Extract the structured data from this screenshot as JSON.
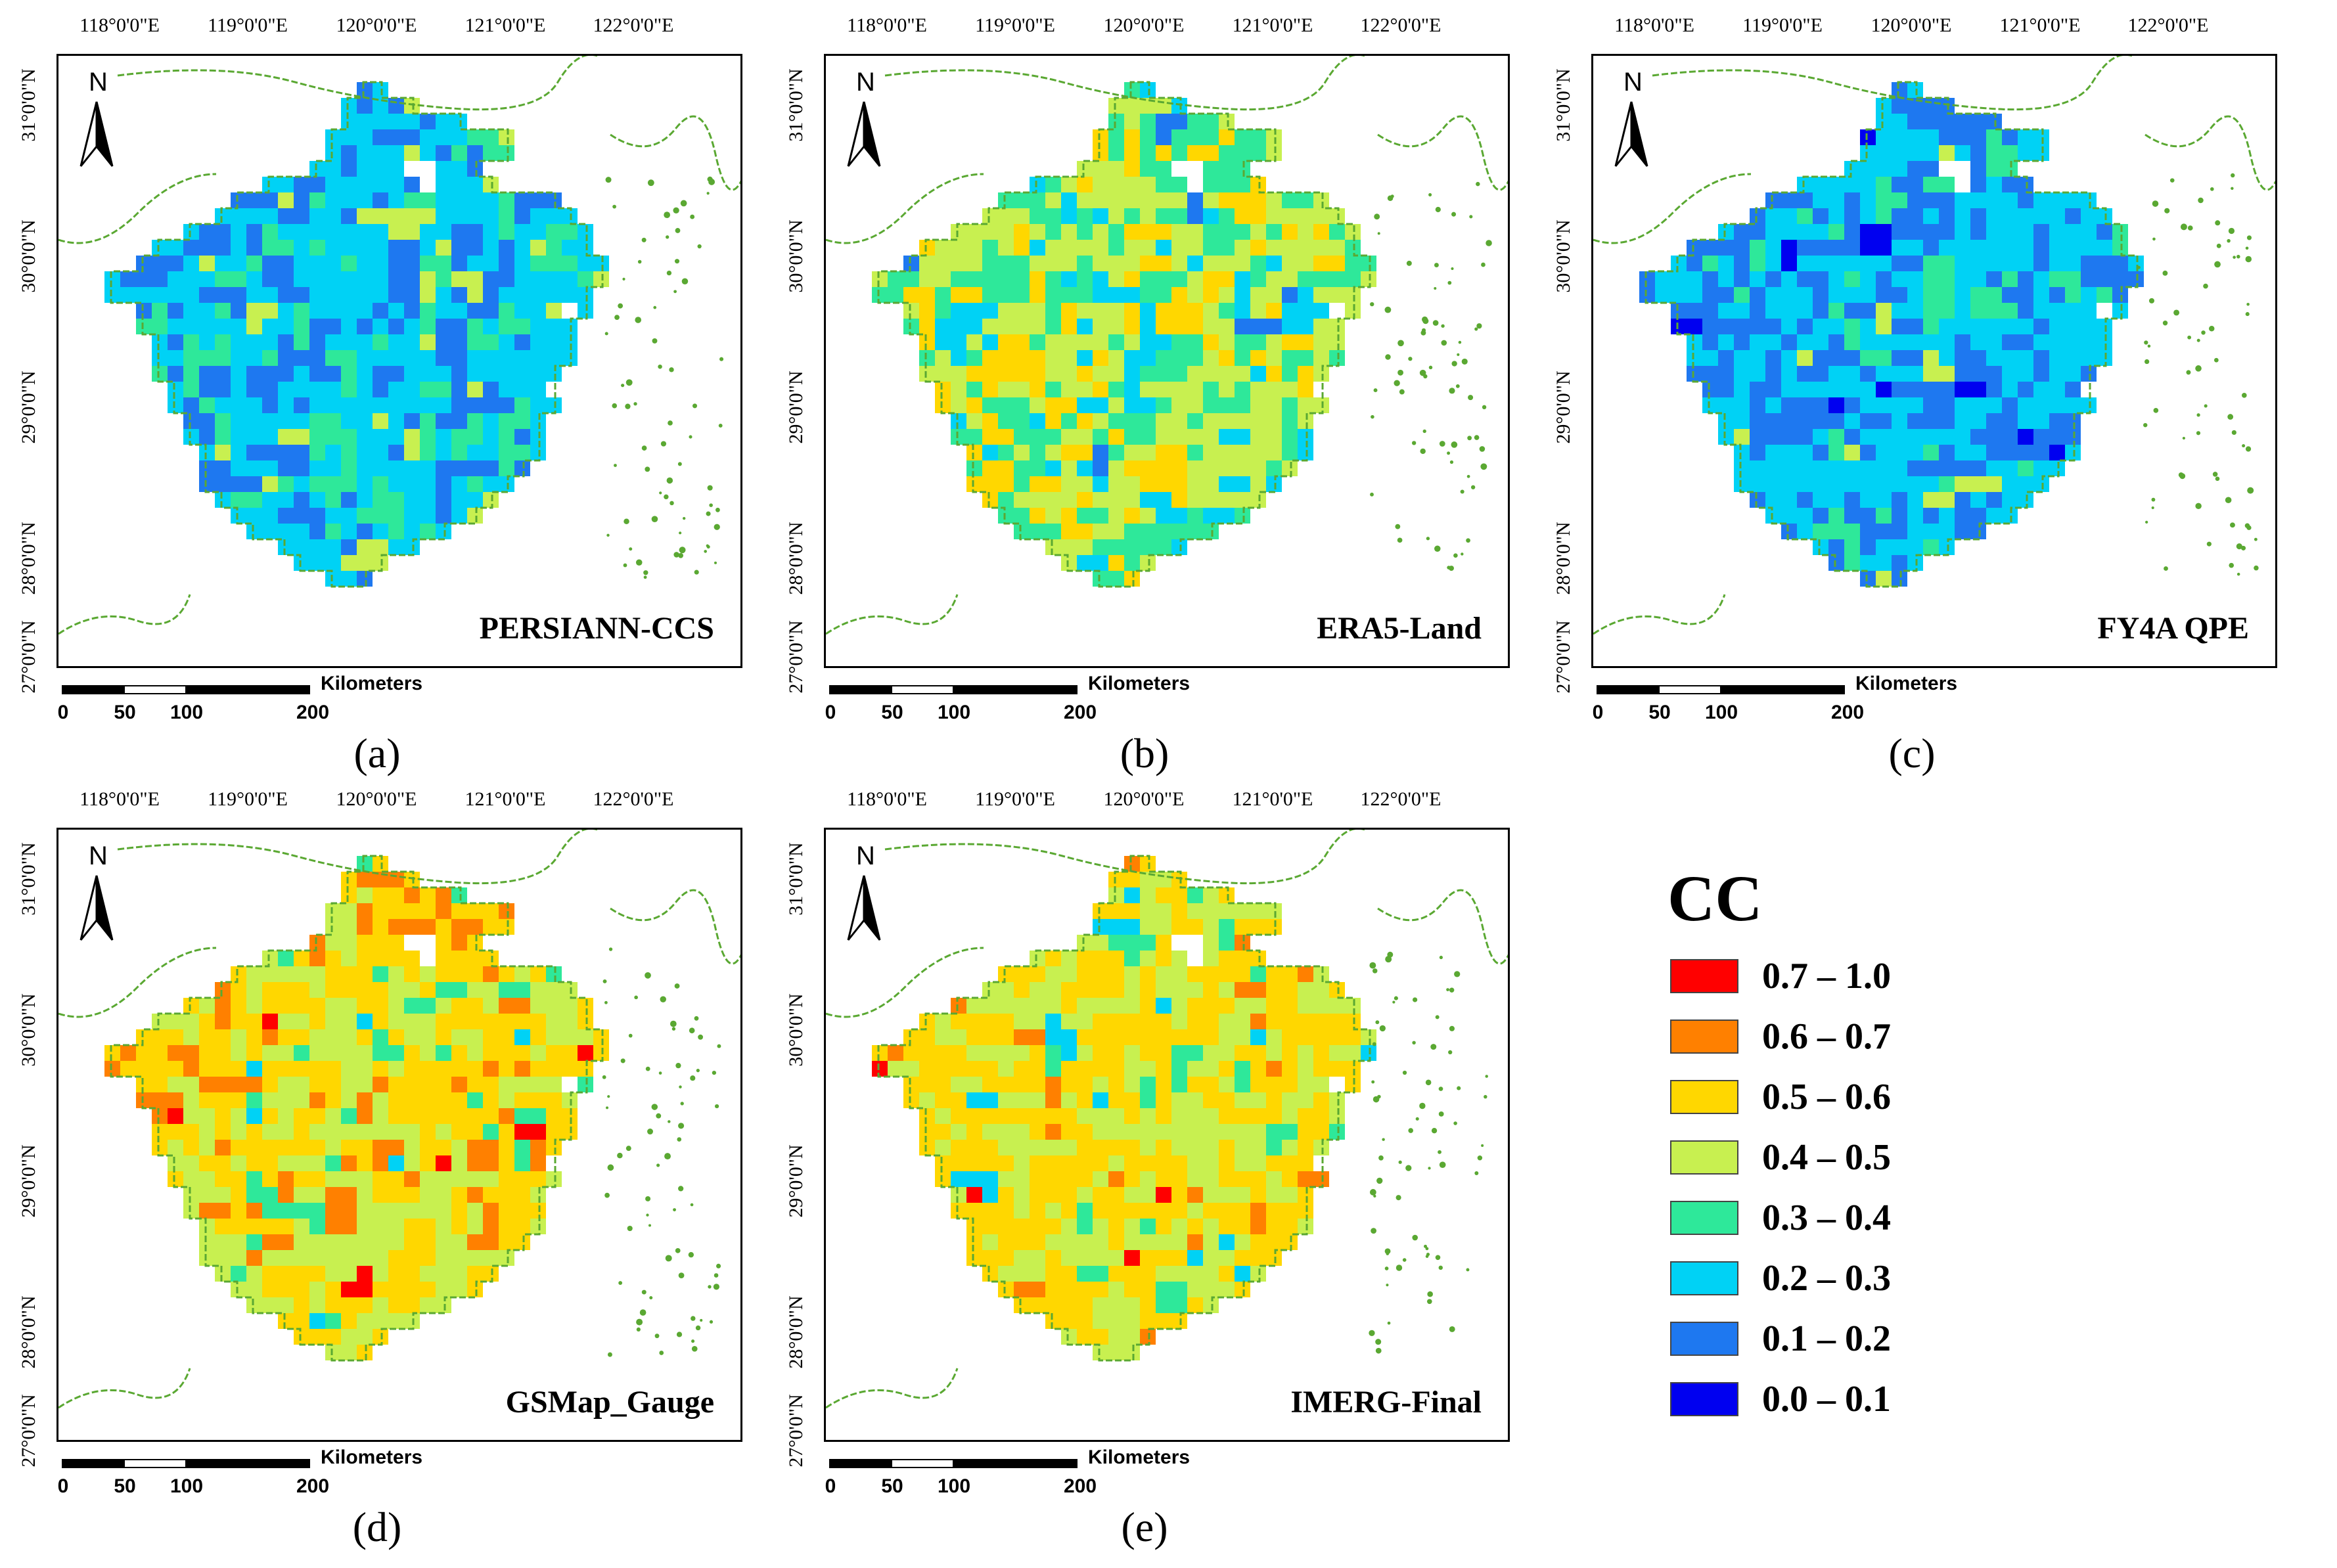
{
  "figure": {
    "longitude_labels": [
      "118°0'0\"E",
      "119°0'0\"E",
      "120°0'0\"E",
      "121°0'0\"E",
      "122°0'0\"E"
    ],
    "latitude_labels": [
      "31°0'0\"N",
      "30°0'0\"N",
      "29°0'0\"N",
      "28°0'0\"N",
      "27°0'0\"N"
    ],
    "north_label": "N",
    "scale": {
      "unit": "Kilometers",
      "ticks": [
        "0",
        "50",
        "100",
        "200"
      ]
    }
  },
  "panels": [
    {
      "id": "a",
      "title": "PERSIANN-CCS",
      "caption": "(a)",
      "palette_weights": [
        0,
        0,
        0,
        0.04,
        0.18,
        0.55,
        0.23,
        0
      ]
    },
    {
      "id": "b",
      "title": "ERA5-Land",
      "caption": "(b)",
      "palette_weights": [
        0,
        0,
        0.2,
        0.38,
        0.3,
        0.1,
        0.02,
        0
      ]
    },
    {
      "id": "c",
      "title": "FY4A QPE",
      "caption": "(c)",
      "palette_weights": [
        0,
        0,
        0,
        0.02,
        0.08,
        0.5,
        0.37,
        0.03
      ]
    },
    {
      "id": "d",
      "title": "GSMap_Gauge",
      "caption": "(d)",
      "palette_weights": [
        0.005,
        0.17,
        0.48,
        0.27,
        0.06,
        0.015,
        0,
        0
      ]
    },
    {
      "id": "e",
      "title": "IMERG-Final",
      "caption": "(e)",
      "palette_weights": [
        0.01,
        0.07,
        0.5,
        0.33,
        0.06,
        0.03,
        0,
        0
      ]
    }
  ],
  "legend": {
    "title": "CC",
    "classes": [
      {
        "label": "0.7 – 1.0",
        "color": "#ff0000"
      },
      {
        "label": "0.6 – 0.7",
        "color": "#ff8000"
      },
      {
        "label": "0.5 – 0.6",
        "color": "#ffd700"
      },
      {
        "label": "0.4 – 0.5",
        "color": "#c8f050"
      },
      {
        "label": "0.3 – 0.4",
        "color": "#2ee89a"
      },
      {
        "label": "0.2 – 0.3",
        "color": "#00d2f5"
      },
      {
        "label": "0.1 – 0.2",
        "color": "#1e78f0"
      },
      {
        "label": "0.0 – 0.1",
        "color": "#0000f0"
      }
    ]
  },
  "colors": {
    "boundary": "#5aa832",
    "frame": "#000000"
  }
}
